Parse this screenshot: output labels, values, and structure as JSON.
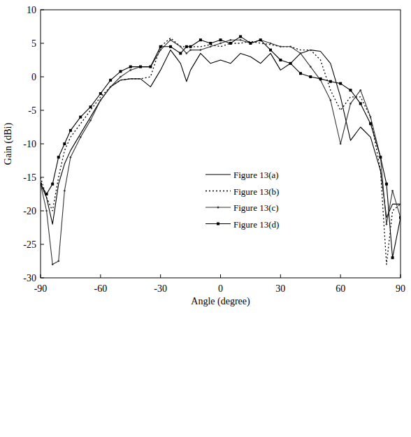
{
  "chart_data": {
    "type": "line",
    "x_label": "Angle (degree)",
    "y_label": "Gain (dBi)",
    "x": [
      -90,
      -87,
      -84,
      -81,
      -78,
      -75,
      -70,
      -65,
      -60,
      -55,
      -50,
      -45,
      -40,
      -35,
      -30,
      -25,
      -20,
      -17,
      -15,
      -10,
      -5,
      0,
      5,
      10,
      15,
      20,
      25,
      30,
      35,
      40,
      45,
      50,
      55,
      60,
      65,
      70,
      75,
      80,
      83,
      86,
      90
    ],
    "xlim": [
      -90,
      90
    ],
    "xticks": [
      -90,
      -60,
      -30,
      0,
      30,
      60,
      90
    ],
    "ylim": [
      -30,
      10
    ],
    "yticks": [
      -30,
      -25,
      -20,
      -15,
      -10,
      -5,
      0,
      5,
      10
    ],
    "grid": false,
    "legend": "center",
    "series": [
      {
        "name": "Figure 13(a)",
        "color": "#000000",
        "line_style": "solid",
        "marker": "none",
        "values": [
          -16,
          -18,
          -22,
          -16,
          -13,
          -11,
          -8.5,
          -6,
          -3.5,
          -1.5,
          -0.5,
          -0.3,
          -0.3,
          -1.5,
          1,
          4,
          2,
          -0.7,
          1,
          3.5,
          2,
          2.5,
          2,
          3.5,
          3,
          2,
          3.5,
          1,
          2,
          3.5,
          4,
          3.8,
          2,
          -3,
          -9.5,
          -7.5,
          -9,
          -14,
          -21,
          -19,
          -19
        ]
      },
      {
        "name": "Figure 13(b)",
        "color": "#000000",
        "line_style": "dotted",
        "marker": "none",
        "values": [
          -15,
          -18,
          -20,
          -15,
          -11,
          -9,
          -7,
          -5,
          -3,
          -1.5,
          -0.5,
          -0.3,
          -0.3,
          0,
          4.5,
          5.8,
          4.5,
          4.5,
          4.5,
          4.5,
          4.8,
          4.5,
          5,
          5,
          5.3,
          5,
          4.8,
          4.5,
          4.5,
          4,
          4,
          2.5,
          -2,
          -5,
          -3,
          -3,
          -6,
          -14,
          -28,
          -20,
          -19
        ]
      },
      {
        "name": "Figure 13(c)",
        "color": "#333333",
        "line_style": "solid",
        "marker": "dot",
        "values": [
          -16,
          -20,
          -28,
          -27.5,
          -17,
          -12,
          -9,
          -6.5,
          -3.5,
          -1.5,
          0,
          1,
          1.5,
          1.5,
          4,
          5.5,
          4.5,
          3.5,
          4,
          4,
          4.5,
          5,
          5.5,
          5.5,
          5,
          5.5,
          5,
          4.5,
          4.5,
          3.5,
          1.5,
          -0.5,
          -3.5,
          -10,
          -4,
          -2,
          -6,
          -12,
          -22,
          -17,
          -21
        ]
      },
      {
        "name": "Figure 13(d)",
        "color": "#000000",
        "line_style": "solid",
        "marker": "square",
        "values": [
          -16,
          -17.5,
          -16,
          -12,
          -10,
          -8,
          -6,
          -4.5,
          -2.5,
          -0.5,
          0.8,
          1.5,
          1.5,
          1.5,
          4.5,
          4.5,
          3.5,
          4.5,
          4.5,
          5.5,
          5,
          5.5,
          5,
          6,
          5,
          5.5,
          4,
          2.5,
          2,
          0.5,
          0,
          -0.3,
          -0.7,
          -1,
          -2,
          -4,
          -7,
          -12,
          -16,
          -27,
          -21
        ]
      }
    ]
  }
}
